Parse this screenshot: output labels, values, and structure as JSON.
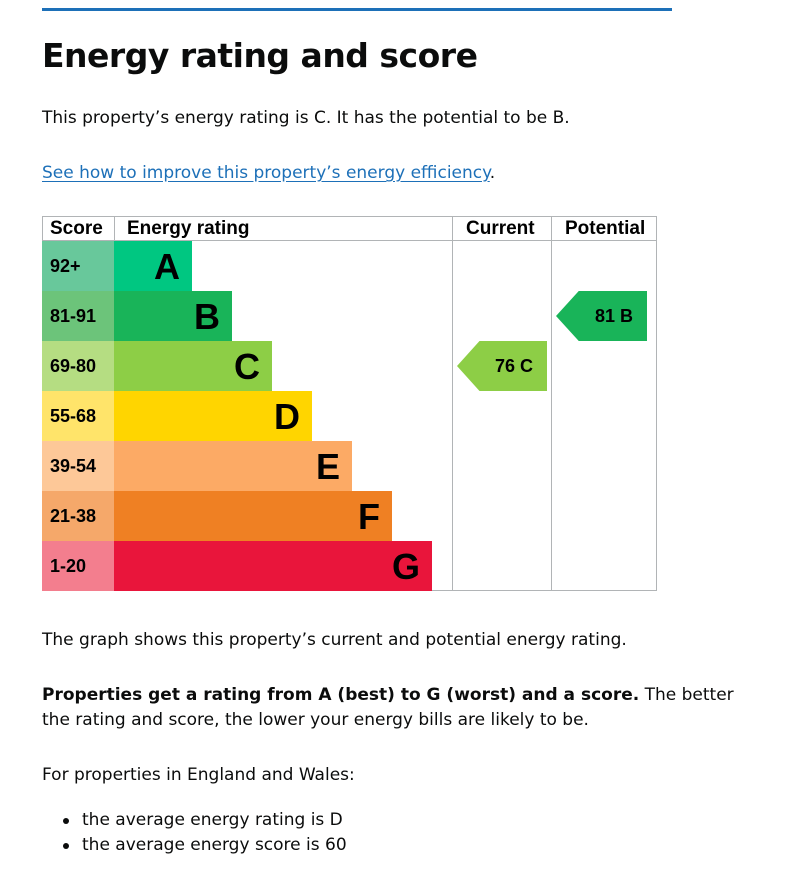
{
  "title": "Energy rating and score",
  "intro": "This property’s energy rating is C. It has the potential to be B.",
  "improve_link": {
    "text": "See how to improve this property’s energy efficiency",
    "suffix": "."
  },
  "graph": {
    "headers": {
      "score": "Score",
      "energy_rating": "Energy rating",
      "current": "Current",
      "potential": "Potential"
    },
    "bands": [
      {
        "range": "92+",
        "letter": "A",
        "score_bg": "#68c89b",
        "bar_bg": "#00c781"
      },
      {
        "range": "81-91",
        "letter": "B",
        "score_bg": "#6cc47a",
        "bar_bg": "#19b459"
      },
      {
        "range": "69-80",
        "letter": "C",
        "score_bg": "#b5dd82",
        "bar_bg": "#8dce46"
      },
      {
        "range": "55-68",
        "letter": "D",
        "score_bg": "#ffe46a",
        "bar_bg": "#ffd500"
      },
      {
        "range": "39-54",
        "letter": "E",
        "score_bg": "#fdc898",
        "bar_bg": "#fcaa65"
      },
      {
        "range": "21-38",
        "letter": "F",
        "score_bg": "#f5a86a",
        "bar_bg": "#ef8023"
      },
      {
        "range": "1-20",
        "letter": "G",
        "score_bg": "#f37e8e",
        "bar_bg": "#e9153b"
      }
    ],
    "current": {
      "score": 76,
      "letter": "C",
      "label": "76  C",
      "color": "#8dce46"
    },
    "potential": {
      "score": 81,
      "letter": "B",
      "label": "81  B",
      "color": "#19b459"
    }
  },
  "graph_note": "The graph shows this property’s current and potential energy rating.",
  "properties": {
    "bold": "Properties get a rating from A (best) to G (worst) and a score.",
    "rest": " The better",
    "line2": "the rating and score, the lower your energy bills are likely to be."
  },
  "england_wales": "For properties in England and Wales:",
  "averages": [
    "the average energy rating is D",
    "the average energy score is 60"
  ]
}
